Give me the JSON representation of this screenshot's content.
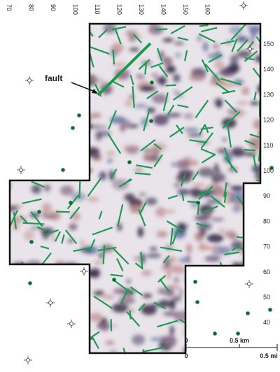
{
  "map": {
    "top_labels": [
      "70",
      "80",
      "90",
      "100",
      "110",
      "120",
      "130",
      "140",
      "150",
      "160"
    ],
    "right_labels": [
      "150",
      "140",
      "130",
      "120",
      "110",
      "100",
      "90",
      "80",
      "70",
      "60",
      "50",
      "40"
    ],
    "annotation": "fault",
    "scale": {
      "km_zero": "0",
      "km_label": "0.5 km",
      "mi_zero": "0",
      "mi_label": "0.5 mi"
    }
  }
}
